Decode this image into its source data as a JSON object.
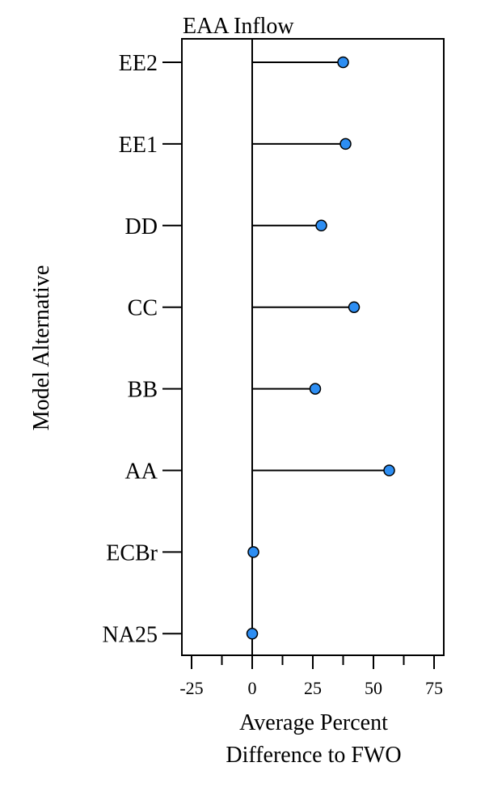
{
  "chart_data": {
    "type": "lollipop",
    "title": "EAA Inflow",
    "xlabel_lines": [
      "Average Percent",
      "Difference to FWO"
    ],
    "ylabel": "Model Alternative",
    "xlim": [
      -29,
      79
    ],
    "x_ticks": [
      -25,
      0,
      25,
      50,
      75
    ],
    "x_minor_ticks": [
      -12.5,
      12.5,
      37.5,
      62.5
    ],
    "categories": [
      "EE2",
      "EE1",
      "DD",
      "CC",
      "BB",
      "AA",
      "ECBr",
      "NA25"
    ],
    "values": [
      37.5,
      38.5,
      28.5,
      42,
      26,
      56.5,
      0.5,
      0
    ],
    "reference_line_x": 0,
    "marker_color": "#2d8ef3",
    "marker_edge_color": "#000000"
  }
}
